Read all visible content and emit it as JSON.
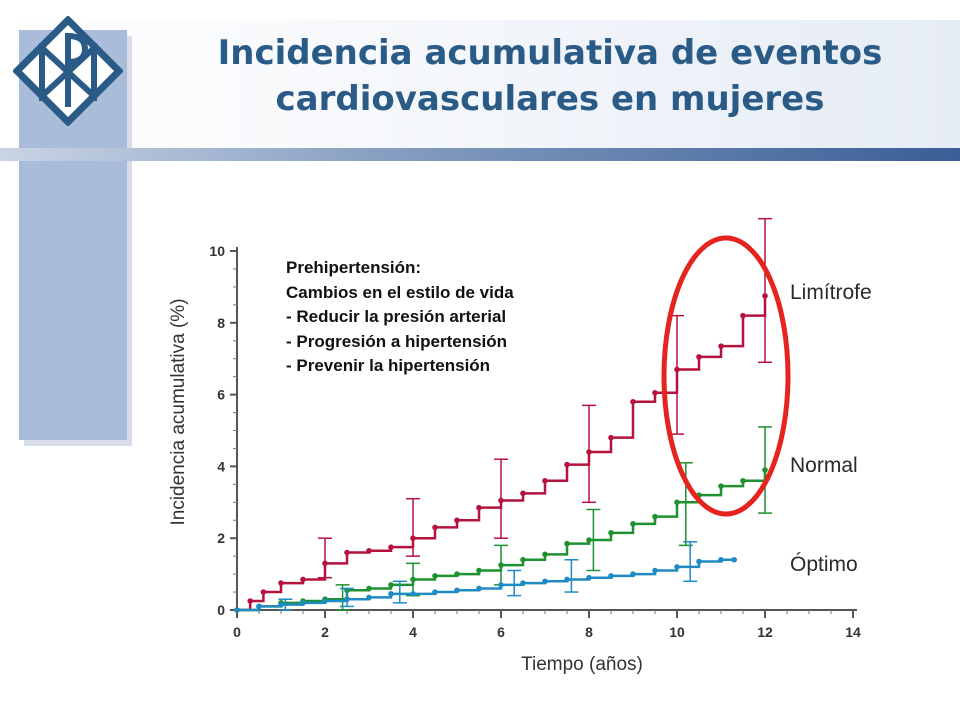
{
  "slide": {
    "title": "Incidencia acumulativa de eventos cardiovasculares en mujeres"
  },
  "colors": {
    "title": "#2a5a86",
    "side_panel": "#a9bddb",
    "highlight_ellipse": "#e52420"
  },
  "annotation": {
    "lines": [
      "Prehipertensión:",
      "Cambios en el estilo de vida",
      "- Reducir la presión arterial",
      "- Progresión a hipertensión",
      "- Prevenir la hipertensión"
    ]
  },
  "chart_data": {
    "type": "line",
    "title": "",
    "xlabel": "Tiempo (años)",
    "ylabel": "Incidencia acumulativa (%)",
    "xlim": [
      0,
      14
    ],
    "ylim": [
      0,
      10
    ],
    "x_ticks": [
      0,
      2,
      4,
      6,
      8,
      10,
      12,
      14
    ],
    "y_ticks": [
      0,
      2,
      4,
      6,
      8,
      10
    ],
    "legend": "labels at right end of each series",
    "highlight": "red ellipse around years 10–12",
    "series": [
      {
        "name": "Limítrofe",
        "color": "#b5123e",
        "x": [
          0,
          0.3,
          0.6,
          1,
          1.5,
          2,
          2.5,
          3,
          3.5,
          4,
          4.5,
          5,
          5.5,
          6,
          6.5,
          7,
          7.5,
          8,
          8.5,
          9,
          9.5,
          10,
          10.5,
          11,
          11.5,
          12
        ],
        "y": [
          0,
          0.25,
          0.5,
          0.75,
          0.85,
          1.3,
          1.6,
          1.65,
          1.75,
          2.0,
          2.3,
          2.5,
          2.85,
          3.05,
          3.25,
          3.6,
          4.05,
          4.4,
          4.8,
          5.8,
          6.05,
          6.7,
          7.05,
          7.35,
          8.2,
          8.75
        ],
        "error_x": [
          2,
          4,
          6,
          8,
          10,
          12
        ],
        "error_low": [
          0.9,
          1.5,
          2.0,
          3.0,
          4.9,
          6.9
        ],
        "error_high": [
          2.0,
          3.1,
          4.2,
          5.7,
          8.2,
          10.9
        ]
      },
      {
        "name": "Normal",
        "color": "#1e9130",
        "x": [
          0,
          0.5,
          1,
          1.5,
          2,
          2.5,
          3,
          3.5,
          4,
          4.5,
          5,
          5.5,
          6,
          6.5,
          7,
          7.5,
          8,
          8.5,
          9,
          9.5,
          10,
          10.5,
          11,
          11.5,
          12
        ],
        "y": [
          0,
          0.1,
          0.2,
          0.25,
          0.3,
          0.55,
          0.6,
          0.7,
          0.85,
          0.95,
          1.0,
          1.1,
          1.25,
          1.4,
          1.55,
          1.85,
          1.95,
          2.15,
          2.4,
          2.6,
          3.0,
          3.2,
          3.45,
          3.6,
          3.9
        ],
        "error_x": [
          2.4,
          4,
          6,
          8.1,
          10.2,
          12
        ],
        "error_low": [
          0.0,
          0.4,
          0.7,
          1.1,
          1.8,
          2.7
        ],
        "error_high": [
          0.7,
          1.3,
          1.8,
          2.8,
          4.1,
          5.1
        ]
      },
      {
        "name": "Óptimo",
        "color": "#1e8bc3",
        "x": [
          0,
          0.5,
          1,
          1.5,
          2,
          2.5,
          3,
          3.5,
          4,
          4.5,
          5,
          5.5,
          6,
          6.5,
          7,
          7.5,
          8,
          8.5,
          9,
          9.5,
          10,
          10.5,
          11,
          11.3
        ],
        "y": [
          0,
          0.1,
          0.15,
          0.2,
          0.25,
          0.3,
          0.35,
          0.45,
          0.45,
          0.5,
          0.55,
          0.6,
          0.7,
          0.75,
          0.8,
          0.85,
          0.9,
          0.95,
          1.0,
          1.1,
          1.2,
          1.35,
          1.4,
          1.4
        ],
        "error_x": [
          1.1,
          2.5,
          3.7,
          6.3,
          7.6,
          10.3
        ],
        "error_low": [
          0.0,
          0.1,
          0.2,
          0.4,
          0.5,
          0.8
        ],
        "error_high": [
          0.3,
          0.6,
          0.8,
          1.1,
          1.4,
          1.9
        ]
      }
    ]
  }
}
